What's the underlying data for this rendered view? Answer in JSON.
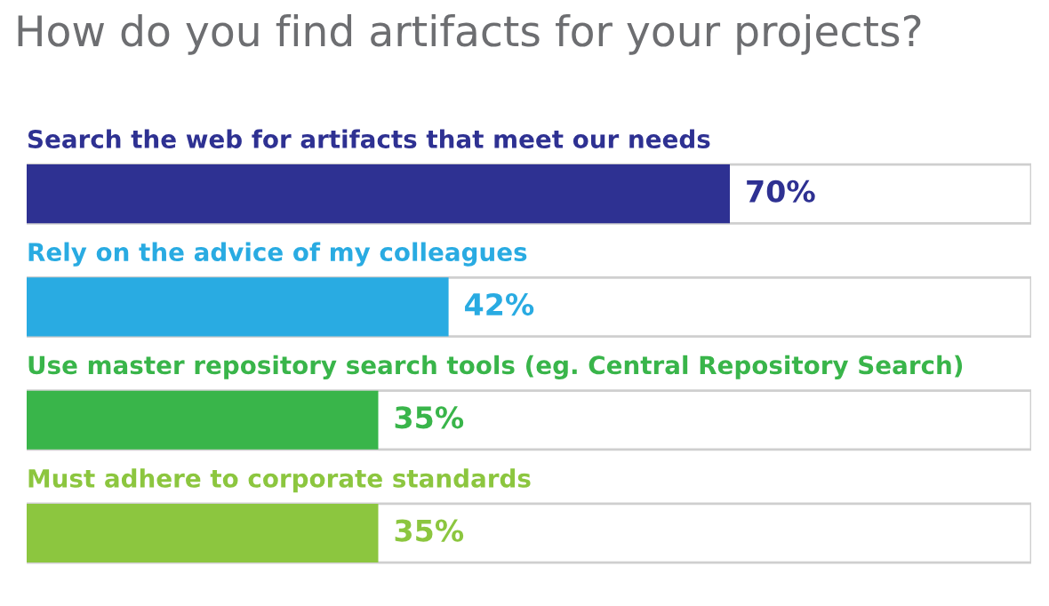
{
  "chart_data": {
    "type": "bar",
    "orientation": "horizontal",
    "title": "How do you find artifacts for your projects?",
    "categories": [
      "Search the web for artifacts that meet our needs",
      "Rely on the advice of my colleagues",
      "Use master repository search tools (eg. Central Repository Search)",
      "Must adhere to corporate standards"
    ],
    "values": [
      70,
      42,
      35,
      35
    ],
    "colors": [
      "#2e3192",
      "#29abe2",
      "#39b54a",
      "#8cc63f"
    ],
    "value_labels": [
      "70%",
      "42%",
      "35%",
      "35%"
    ],
    "xlim": [
      0,
      100
    ]
  }
}
